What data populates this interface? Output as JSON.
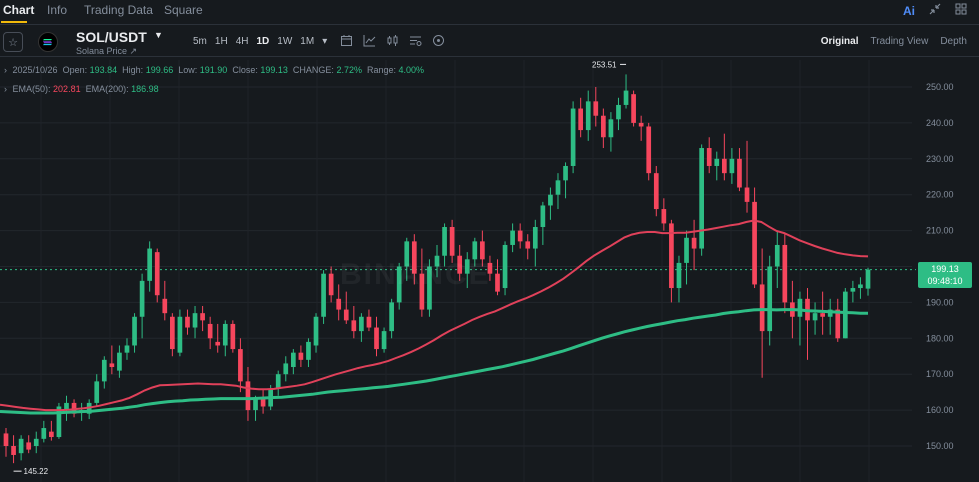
{
  "tabs": [
    {
      "label": "Chart",
      "active": true
    },
    {
      "label": "Info",
      "active": false
    },
    {
      "label": "Trading Data",
      "active": false
    },
    {
      "label": "Square",
      "active": false
    }
  ],
  "top_icons": {
    "ai": "Ai",
    "collapse_icon": "collapse-icon",
    "grid_icon": "grid-icon"
  },
  "symbol": {
    "pair": "SOL/USDT",
    "subtitle": "Solana Price",
    "subtitle_mark": "↗"
  },
  "intervals": [
    "5m",
    "1H",
    "4H",
    "1D",
    "1W",
    "1M"
  ],
  "active_interval": "1D",
  "views": [
    {
      "label": "Original",
      "active": true
    },
    {
      "label": "Trading View",
      "active": false
    },
    {
      "label": "Depth",
      "active": false
    }
  ],
  "ohlc": {
    "date": "2025/10/26",
    "open_label": "Open:",
    "open": "193.84",
    "high_label": "High:",
    "high": "199.66",
    "low_label": "Low:",
    "low": "191.90",
    "close_label": "Close:",
    "close": "199.13",
    "change_label": "CHANGE:",
    "change": "2.72%",
    "range_label": "Range:",
    "range": "4.00%"
  },
  "ema": {
    "ema50_label": "EMA(50):",
    "ema50": "202.81",
    "ema200_label": "EMA(200):",
    "ema200": "186.98"
  },
  "price_tag": {
    "price": "199.13",
    "countdown": "09:48:10"
  },
  "watermark": "BINANCE",
  "colors": {
    "up": "#2ebd85",
    "down": "#f6465d",
    "ema50": "#e0415a",
    "ema200": "#2ebd85",
    "accent": "#f0b90b"
  },
  "chart_data": {
    "type": "candlestick",
    "y_ticks": [
      "250.00",
      "240.00",
      "230.00",
      "220.00",
      "210.00",
      "200.00",
      "190.00",
      "180.00",
      "170.00",
      "160.00",
      "150.00"
    ],
    "ylim": [
      142,
      262
    ],
    "high_marker": "253.51",
    "low_marker": "145.22",
    "current_price": 199.13,
    "candles": [
      [
        153.5,
        155,
        147,
        150
      ],
      [
        150,
        153,
        145.22,
        147.5
      ],
      [
        148,
        153,
        146,
        152
      ],
      [
        151,
        153,
        148,
        149
      ],
      [
        150,
        154,
        148,
        152
      ],
      [
        152,
        157,
        151,
        155
      ],
      [
        154,
        157,
        151.5,
        152.5
      ],
      [
        152.5,
        162,
        152,
        161
      ],
      [
        160,
        164,
        157,
        162
      ],
      [
        162,
        163,
        158,
        159
      ],
      [
        160,
        162,
        157,
        160
      ],
      [
        159,
        163,
        157.5,
        162
      ],
      [
        162,
        170,
        161,
        168
      ],
      [
        168,
        175,
        166,
        174
      ],
      [
        173,
        178,
        170,
        172
      ],
      [
        171,
        178,
        169,
        176
      ],
      [
        176,
        180,
        174,
        178
      ],
      [
        178,
        187,
        176,
        186
      ],
      [
        186,
        198,
        180,
        196
      ],
      [
        196,
        207,
        193,
        205
      ],
      [
        204,
        205,
        190,
        192
      ],
      [
        191,
        196,
        185,
        187
      ],
      [
        186,
        187,
        175,
        177
      ],
      [
        176,
        188,
        175,
        186
      ],
      [
        186,
        188,
        181,
        183
      ],
      [
        183,
        189,
        180,
        187
      ],
      [
        187,
        189,
        182,
        185
      ],
      [
        184,
        186,
        177,
        180
      ],
      [
        179,
        184,
        176,
        178
      ],
      [
        178,
        185,
        175,
        184
      ],
      [
        184,
        185,
        176,
        177
      ],
      [
        177,
        180,
        165,
        168
      ],
      [
        168,
        172,
        157,
        160
      ],
      [
        160,
        164,
        157,
        163
      ],
      [
        163,
        166,
        159,
        161
      ],
      [
        161,
        167,
        160,
        166
      ],
      [
        166,
        171,
        164,
        170
      ],
      [
        170,
        175,
        168,
        173
      ],
      [
        172,
        177,
        170,
        176
      ],
      [
        176,
        178,
        172,
        174
      ],
      [
        174,
        180,
        172,
        179
      ],
      [
        178,
        187,
        176,
        186
      ],
      [
        186,
        199,
        184,
        198
      ],
      [
        198,
        200,
        190,
        192
      ],
      [
        191,
        195,
        185,
        188
      ],
      [
        188,
        193,
        184,
        185
      ],
      [
        185,
        189,
        180,
        182
      ],
      [
        182,
        187,
        179,
        186
      ],
      [
        186,
        188,
        182,
        183
      ],
      [
        183,
        186,
        175,
        177
      ],
      [
        177,
        183,
        176,
        182
      ],
      [
        182,
        191,
        180,
        190
      ],
      [
        190,
        201,
        188,
        200
      ],
      [
        200,
        208,
        196,
        207
      ],
      [
        207,
        209,
        195,
        198
      ],
      [
        198,
        205,
        186,
        188
      ],
      [
        188,
        202,
        186,
        200
      ],
      [
        200,
        206,
        197,
        203
      ],
      [
        203,
        212,
        200,
        211
      ],
      [
        211,
        213,
        201,
        203
      ],
      [
        203,
        206,
        196,
        198
      ],
      [
        198,
        204,
        194,
        202
      ],
      [
        202,
        208,
        200,
        207
      ],
      [
        207,
        210,
        200,
        202
      ],
      [
        201,
        203,
        196,
        198
      ],
      [
        198,
        202,
        192,
        193
      ],
      [
        194,
        207,
        192,
        206
      ],
      [
        206,
        212,
        204,
        210
      ],
      [
        210,
        212,
        205,
        207
      ],
      [
        207,
        209,
        202,
        205
      ],
      [
        205,
        213,
        200,
        211
      ],
      [
        211,
        218,
        206,
        217
      ],
      [
        217,
        222,
        213,
        220
      ],
      [
        220,
        226,
        216,
        224
      ],
      [
        224,
        229,
        219,
        228
      ],
      [
        228,
        246,
        226,
        244
      ],
      [
        244,
        247,
        236,
        238
      ],
      [
        238,
        249,
        235,
        246
      ],
      [
        246,
        250,
        239,
        242
      ],
      [
        242,
        244,
        233,
        236
      ],
      [
        236,
        243,
        232,
        241
      ],
      [
        241,
        247,
        238,
        245
      ],
      [
        245,
        253.51,
        244,
        249
      ],
      [
        248,
        249,
        239,
        240
      ],
      [
        240,
        242,
        235,
        239
      ],
      [
        239,
        240,
        224,
        226
      ],
      [
        226,
        228,
        214,
        216
      ],
      [
        216,
        219,
        210,
        212
      ],
      [
        212,
        213,
        190,
        194
      ],
      [
        194,
        203,
        190,
        201
      ],
      [
        201,
        210,
        195,
        208
      ],
      [
        208,
        213,
        199,
        205
      ],
      [
        205,
        234,
        203,
        233
      ],
      [
        233,
        236,
        226,
        228
      ],
      [
        228,
        232,
        224,
        230
      ],
      [
        230,
        237,
        224,
        226
      ],
      [
        226,
        233,
        223,
        230
      ],
      [
        230,
        233,
        221,
        222
      ],
      [
        222,
        235,
        215,
        218
      ],
      [
        218,
        222,
        194,
        195
      ],
      [
        195,
        205,
        169,
        182
      ],
      [
        182,
        203,
        178,
        200
      ],
      [
        200,
        210,
        194,
        206
      ],
      [
        206,
        209,
        187,
        190
      ],
      [
        190,
        196,
        180,
        186
      ],
      [
        186,
        193,
        178,
        191
      ],
      [
        191,
        194,
        174,
        185
      ],
      [
        185,
        190,
        181,
        187
      ],
      [
        187,
        193,
        181,
        186
      ],
      [
        186,
        191,
        181,
        188
      ],
      [
        188,
        191,
        179,
        180
      ],
      [
        180,
        194,
        180,
        193
      ],
      [
        193,
        196,
        190,
        194
      ],
      [
        194,
        197,
        191,
        195
      ],
      [
        193.84,
        199.66,
        191.9,
        199.13
      ]
    ],
    "ema50": [
      161.5,
      161.2,
      160.9,
      160.6,
      160.4,
      160.2,
      160.0,
      160.0,
      160.0,
      160.1,
      160.3,
      160.5,
      160.8,
      161.2,
      161.7,
      162.2,
      162.7,
      163.4,
      164.4,
      165.5,
      166.3,
      166.9,
      167.0,
      167.1,
      167.2,
      167.3,
      167.4,
      167.3,
      167.2,
      167.2,
      167.0,
      166.8,
      166.3,
      166.0,
      165.8,
      165.8,
      165.9,
      166.2,
      166.5,
      166.8,
      167.2,
      167.8,
      168.5,
      169.2,
      169.9,
      170.5,
      171.1,
      171.7,
      172.2,
      172.6,
      173.1,
      173.7,
      174.5,
      175.3,
      176.2,
      177.2,
      178.3,
      179.5,
      180.8,
      182.0,
      183.0,
      184.0,
      185.1,
      186.0,
      186.8,
      187.5,
      188.4,
      189.4,
      190.3,
      191.1,
      192.0,
      193.0,
      194.1,
      195.3,
      196.6,
      198.2,
      199.8,
      201.5,
      203.0,
      204.3,
      205.5,
      206.8,
      208.1,
      208.9,
      209.4,
      209.6,
      209.6,
      209.3,
      209.3,
      209.4,
      209.4,
      209.7,
      210.0,
      210.3,
      210.7,
      211.1,
      211.5,
      211.8,
      212.4,
      212.8,
      212.4,
      211.1,
      209.9,
      209.3,
      208.3,
      207.3,
      206.5,
      205.7,
      205.0,
      204.4,
      203.8,
      203.4,
      203.1,
      202.9,
      202.81
    ],
    "ema200": [
      159.6,
      159.5,
      159.4,
      159.3,
      159.2,
      159.2,
      159.2,
      159.2,
      159.3,
      159.4,
      159.5,
      159.6,
      159.7,
      159.9,
      160.1,
      160.3,
      160.5,
      160.8,
      161.1,
      161.5,
      161.8,
      162.1,
      162.3,
      162.5,
      162.6,
      162.8,
      162.9,
      163.0,
      163.1,
      163.2,
      163.2,
      163.2,
      163.2,
      163.2,
      163.3,
      163.4,
      163.5,
      163.6,
      163.8,
      164.0,
      164.2,
      164.4,
      164.7,
      165.0,
      165.2,
      165.4,
      165.6,
      165.8,
      166.0,
      166.2,
      166.4,
      166.6,
      166.9,
      167.2,
      167.5,
      167.8,
      168.1,
      168.5,
      168.9,
      169.3,
      169.7,
      170.1,
      170.5,
      170.9,
      171.3,
      171.7,
      172.1,
      172.6,
      173.1,
      173.6,
      174.1,
      174.7,
      175.3,
      175.9,
      176.5,
      177.2,
      177.9,
      178.6,
      179.3,
      180.0,
      180.6,
      181.2,
      181.8,
      182.3,
      182.8,
      183.3,
      183.7,
      184.1,
      184.5,
      184.9,
      185.2,
      185.6,
      185.9,
      186.2,
      186.5,
      186.9,
      187.2,
      187.4,
      187.7,
      187.9,
      188.0,
      188.0,
      187.9,
      188.0,
      188.0,
      187.9,
      187.7,
      187.6,
      187.5,
      187.4,
      187.3,
      187.2,
      187.1,
      187.0,
      186.98
    ]
  }
}
